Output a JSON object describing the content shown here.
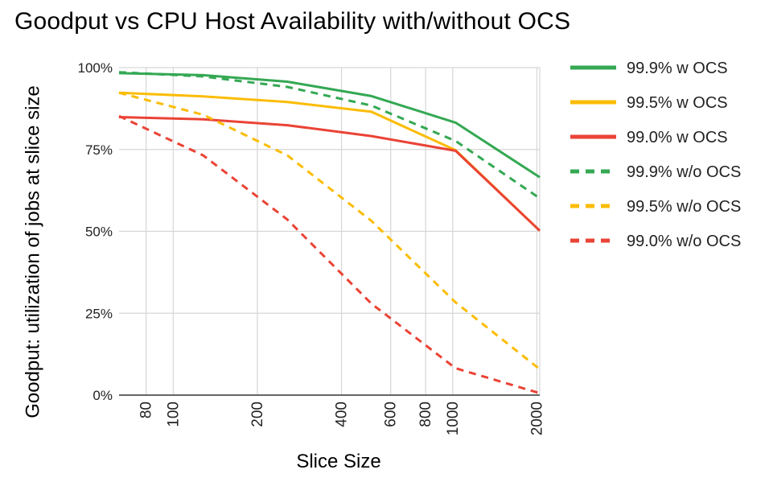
{
  "chart_data": {
    "type": "line",
    "title": "Goodput vs CPU Host Availability with/without OCS",
    "xlabel": "Slice Size",
    "ylabel": "Goodput: utilization of jobs at slice size",
    "x_scale": "log",
    "xlim": [
      64,
      2048
    ],
    "ylim": [
      0,
      100
    ],
    "x_ticks": [
      80,
      100,
      200,
      400,
      600,
      800,
      1000,
      2000
    ],
    "x_tick_labels": [
      "80",
      "100",
      "200",
      "400",
      "600",
      "800",
      "1000",
      "2000"
    ],
    "y_ticks": [
      0,
      25,
      50,
      75,
      100
    ],
    "y_tick_labels": [
      "0%",
      "25%",
      "50%",
      "75%",
      "100%"
    ],
    "grid": true,
    "legend_position": "right",
    "series": [
      {
        "name": "99.9% w OCS",
        "color": "#34a853",
        "dash": "solid",
        "x": [
          64,
          128,
          256,
          512,
          1024,
          2048
        ],
        "y": [
          98.3,
          97.7,
          95.7,
          91.3,
          83.2,
          66.5
        ]
      },
      {
        "name": "99.5% w OCS",
        "color": "#fbbc04",
        "dash": "solid",
        "x": [
          64,
          128,
          256,
          512,
          1024,
          2048
        ],
        "y": [
          92.3,
          91.2,
          89.5,
          86.5,
          74.8,
          50.2
        ]
      },
      {
        "name": "99.0% w OCS",
        "color": "#ea4335",
        "dash": "solid",
        "x": [
          64,
          128,
          256,
          512,
          1024,
          2048
        ],
        "y": [
          84.9,
          84.2,
          82.4,
          79.1,
          74.6,
          50.2
        ]
      },
      {
        "name": "99.9% w/o OCS",
        "color": "#34a853",
        "dash": "dashed",
        "x": [
          64,
          128,
          256,
          512,
          1024,
          2048
        ],
        "y": [
          98.6,
          97.3,
          94.1,
          88.4,
          77.6,
          60.1
        ]
      },
      {
        "name": "99.5% w/o OCS",
        "color": "#fbbc04",
        "dash": "dashed",
        "x": [
          64,
          128,
          256,
          512,
          1024,
          2048
        ],
        "y": [
          92.3,
          85.6,
          73.2,
          53.2,
          28.3,
          7.9
        ]
      },
      {
        "name": "99.0% w/o OCS",
        "color": "#ea4335",
        "dash": "dashed",
        "x": [
          64,
          128,
          256,
          512,
          1024,
          2048
        ],
        "y": [
          85.2,
          73.2,
          53.6,
          27.9,
          8.2,
          0.6
        ]
      }
    ]
  }
}
